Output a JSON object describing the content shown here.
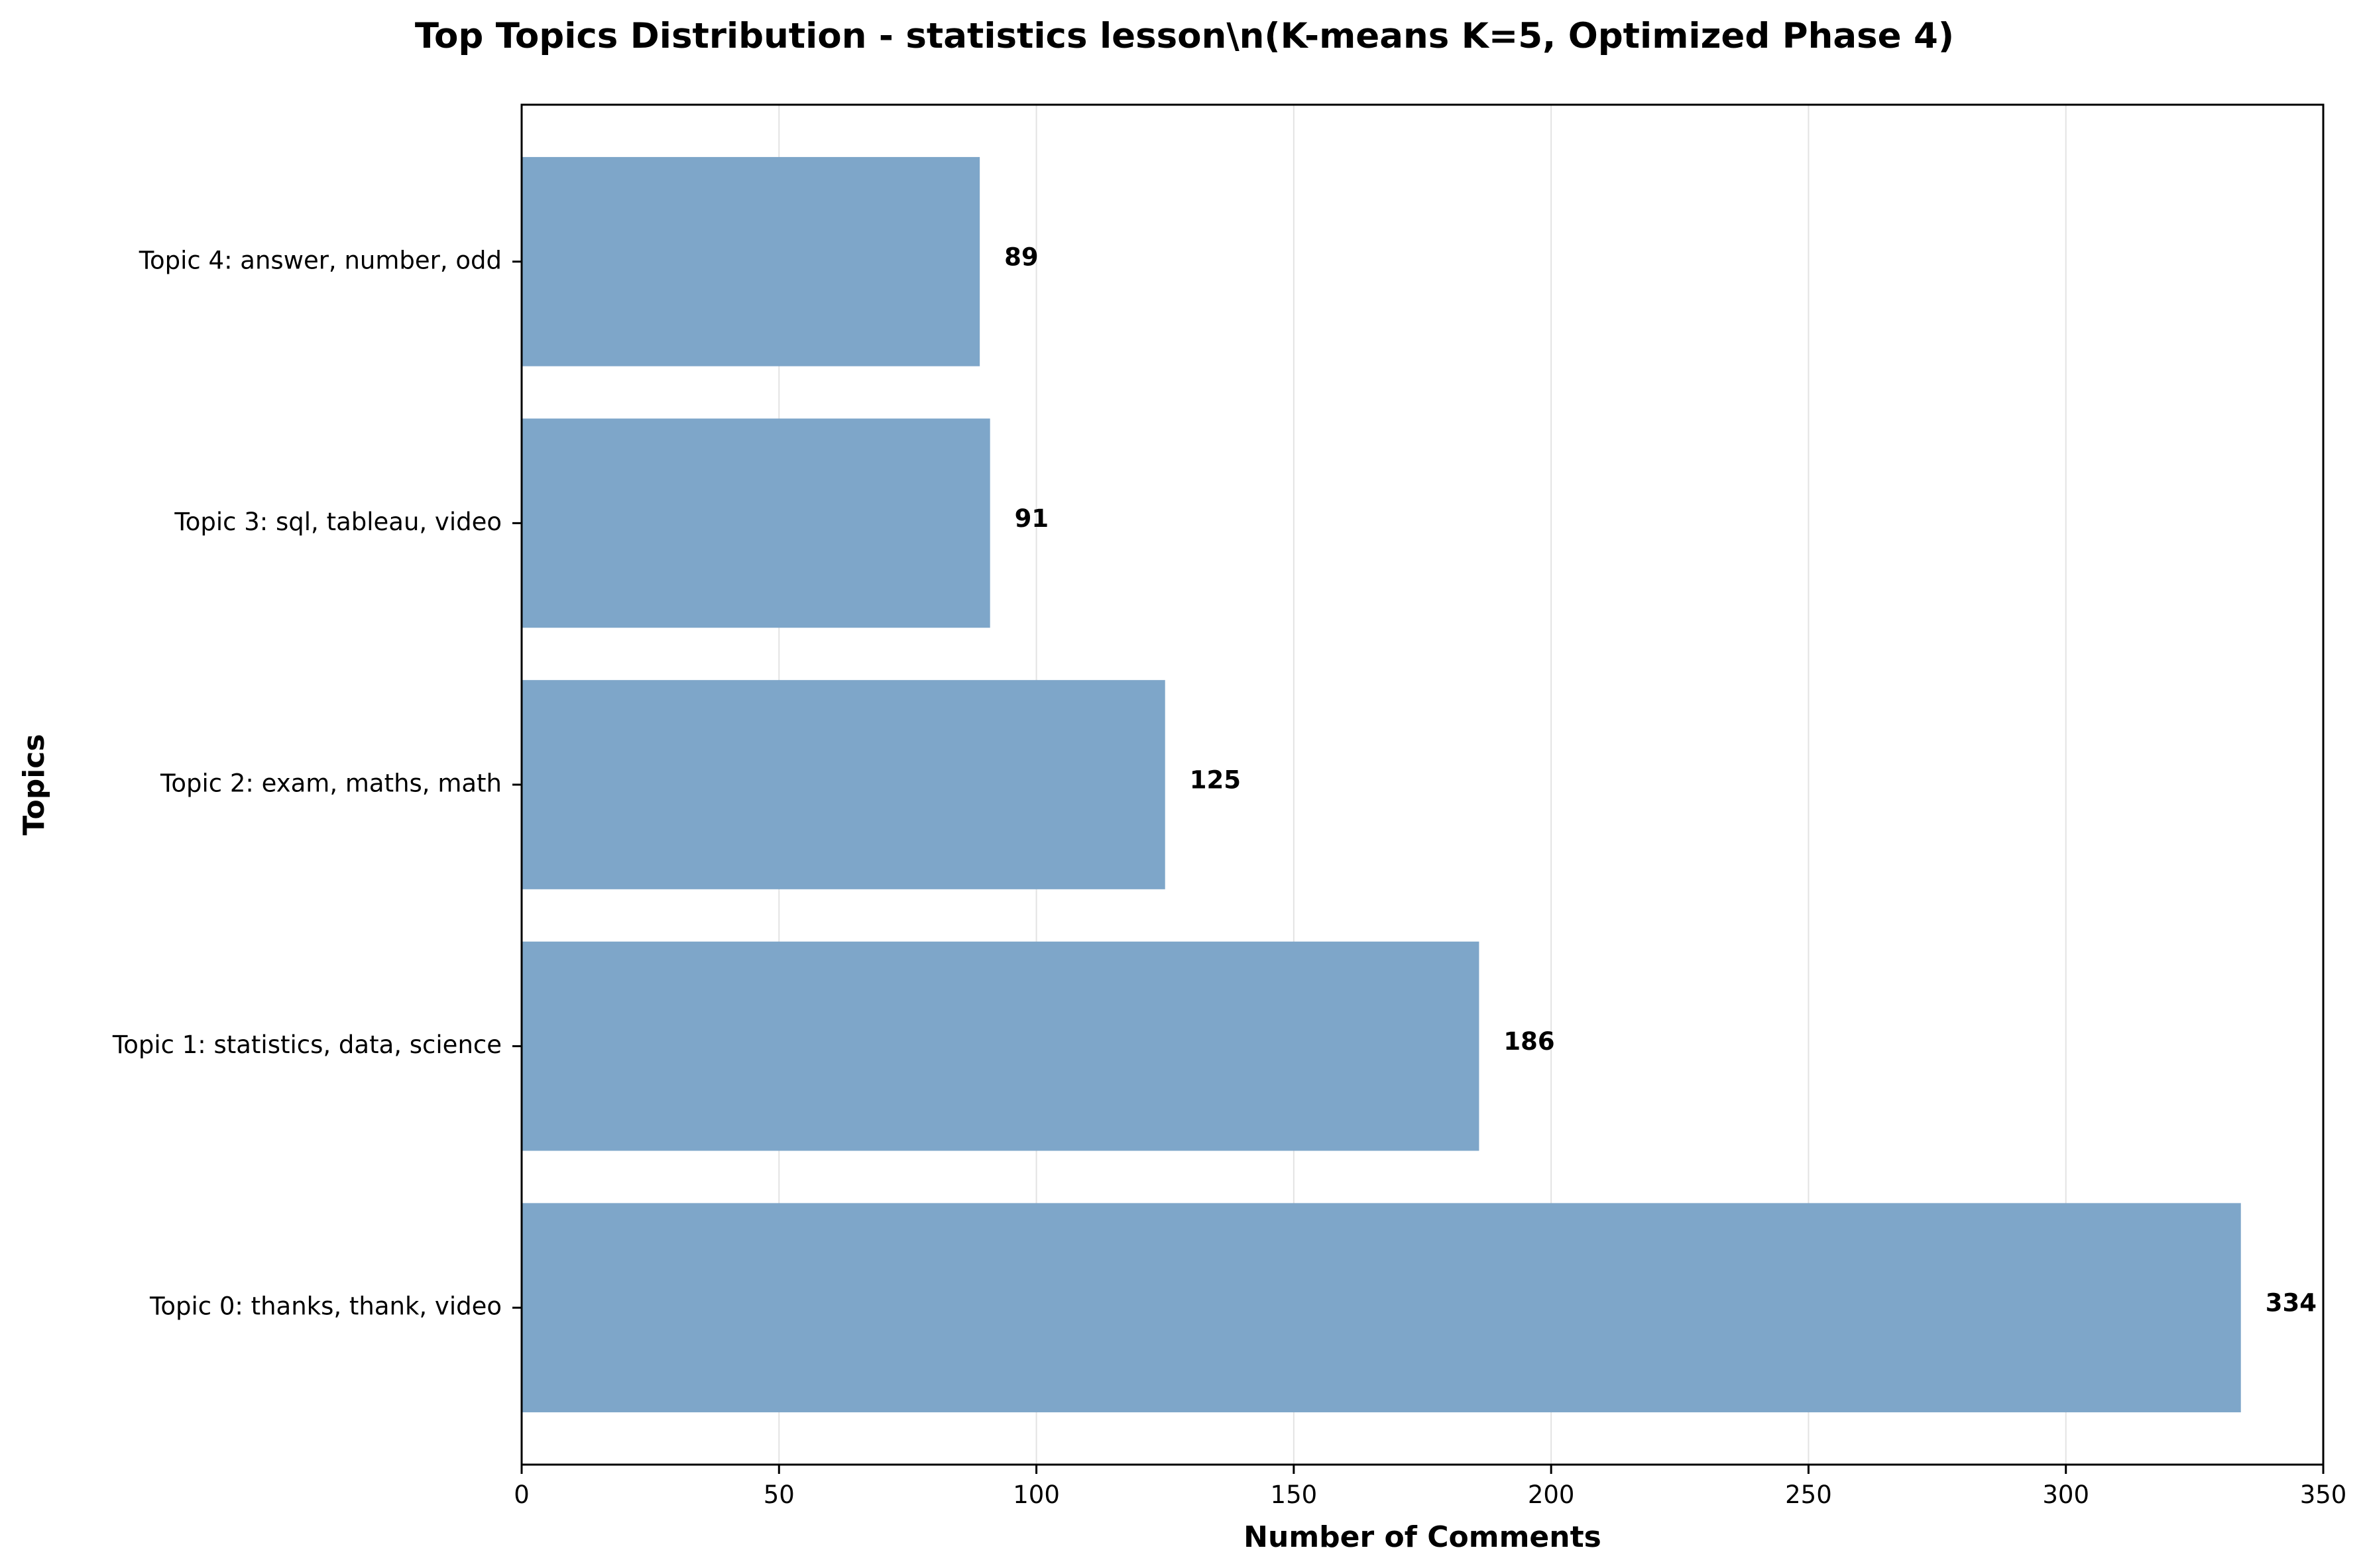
{
  "chart_data": {
    "type": "bar",
    "orientation": "horizontal",
    "title": "Top Topics Distribution - statistics lesson\\n(K-means K=5, Optimized Phase 4)",
    "xlabel": "Number of Comments",
    "ylabel": "Topics",
    "categories": [
      "Topic 0: thanks, thank, video",
      "Topic 1: statistics, data, science",
      "Topic 2: exam, maths, math",
      "Topic 3: sql, tableau, video",
      "Topic 4: answer, number, odd"
    ],
    "values": [
      334,
      186,
      125,
      91,
      89
    ],
    "data_labels": [
      "334",
      "186",
      "125",
      "91",
      "89"
    ],
    "xlim": [
      0,
      350
    ],
    "xticks": [
      0,
      50,
      100,
      150,
      200,
      250,
      300,
      350
    ],
    "xtick_labels": [
      "0",
      "50",
      "100",
      "150",
      "200",
      "250",
      "300",
      "350"
    ],
    "grid": "x",
    "legend": "none",
    "colors": {
      "bar": "#7ea6c9",
      "grid": "#e3e3e3",
      "axis": "#000000"
    }
  }
}
